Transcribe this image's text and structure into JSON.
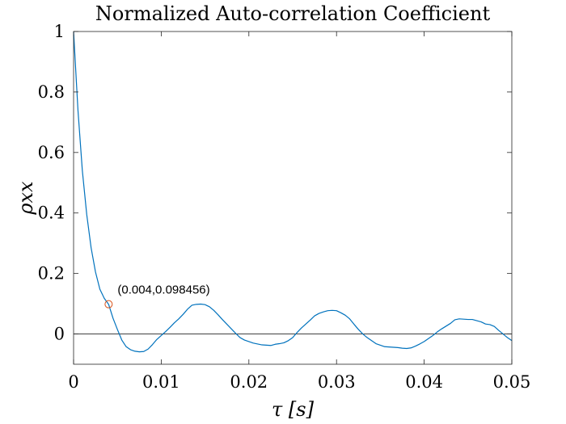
{
  "chart_data": {
    "type": "line",
    "title": "Normalized Auto-correlation Coefficient",
    "xlabel": "τ [s]",
    "ylabel": "ρxx",
    "xlim": [
      0,
      0.05
    ],
    "ylim": [
      -0.1,
      1
    ],
    "xticks": [
      "0",
      "0.01",
      "0.02",
      "0.03",
      "0.04",
      "0.05"
    ],
    "xtick_values": [
      0,
      0.01,
      0.02,
      0.03,
      0.04,
      0.05
    ],
    "yticks": [
      "0",
      "0.2",
      "0.4",
      "0.6",
      "0.8",
      "1"
    ],
    "ytick_values": [
      0,
      0.2,
      0.4,
      0.6,
      0.8,
      1
    ],
    "grid": false,
    "zero_line": true,
    "series": [
      {
        "color": "#0072BD",
        "x": [
          0,
          0.0005,
          0.001,
          0.0015,
          0.002,
          0.0025,
          0.003,
          0.0035,
          0.004,
          0.0045,
          0.005,
          0.0055,
          0.006,
          0.0065,
          0.007,
          0.0075,
          0.008,
          0.0085,
          0.009,
          0.0095,
          0.01,
          0.0105,
          0.011,
          0.0115,
          0.012,
          0.0125,
          0.013,
          0.0135,
          0.014,
          0.0145,
          0.015,
          0.0155,
          0.016,
          0.0165,
          0.017,
          0.0175,
          0.018,
          0.0185,
          0.019,
          0.0195,
          0.02,
          0.0205,
          0.021,
          0.0215,
          0.022,
          0.0225,
          0.023,
          0.0235,
          0.024,
          0.0245,
          0.025,
          0.0255,
          0.026,
          0.0265,
          0.027,
          0.0275,
          0.028,
          0.0285,
          0.029,
          0.0295,
          0.03,
          0.0305,
          0.031,
          0.0315,
          0.032,
          0.0325,
          0.033,
          0.0335,
          0.034,
          0.0345,
          0.035,
          0.0355,
          0.036,
          0.0365,
          0.037,
          0.0375,
          0.038,
          0.0385,
          0.039,
          0.0395,
          0.04,
          0.0405,
          0.041,
          0.0415,
          0.042,
          0.0425,
          0.043,
          0.0435,
          0.044,
          0.0445,
          0.045,
          0.0455,
          0.046,
          0.0465,
          0.047,
          0.0475,
          0.048,
          0.0485,
          0.049,
          0.0495,
          0.05
        ],
        "y": [
          1.0,
          0.74,
          0.54,
          0.395,
          0.285,
          0.205,
          0.148,
          0.118,
          0.098,
          0.052,
          0.015,
          -0.02,
          -0.042,
          -0.052,
          -0.057,
          -0.059,
          -0.058,
          -0.05,
          -0.035,
          -0.018,
          -0.005,
          0.008,
          0.022,
          0.037,
          0.05,
          0.065,
          0.082,
          0.095,
          0.098,
          0.099,
          0.097,
          0.09,
          0.078,
          0.063,
          0.047,
          0.032,
          0.017,
          0.002,
          -0.012,
          -0.02,
          -0.025,
          -0.03,
          -0.033,
          -0.036,
          -0.037,
          -0.038,
          -0.034,
          -0.032,
          -0.029,
          -0.022,
          -0.012,
          0.005,
          0.02,
          0.033,
          0.046,
          0.06,
          0.068,
          0.073,
          0.077,
          0.078,
          0.077,
          0.07,
          0.062,
          0.05,
          0.032,
          0.015,
          0.0,
          -0.012,
          -0.022,
          -0.032,
          -0.037,
          -0.042,
          -0.043,
          -0.044,
          -0.045,
          -0.047,
          -0.048,
          -0.046,
          -0.04,
          -0.033,
          -0.025,
          -0.015,
          -0.005,
          0.007,
          0.017,
          0.026,
          0.035,
          0.047,
          0.05,
          0.049,
          0.048,
          0.048,
          0.044,
          0.04,
          0.033,
          0.031,
          0.025,
          0.012,
          0.0,
          -0.012,
          -0.022
        ]
      }
    ],
    "annotations": [
      {
        "text": "(0.004,0.098456)",
        "x": 0.004,
        "y": 0.098456,
        "marker": "circle",
        "marker_color": "#D95319"
      }
    ]
  }
}
